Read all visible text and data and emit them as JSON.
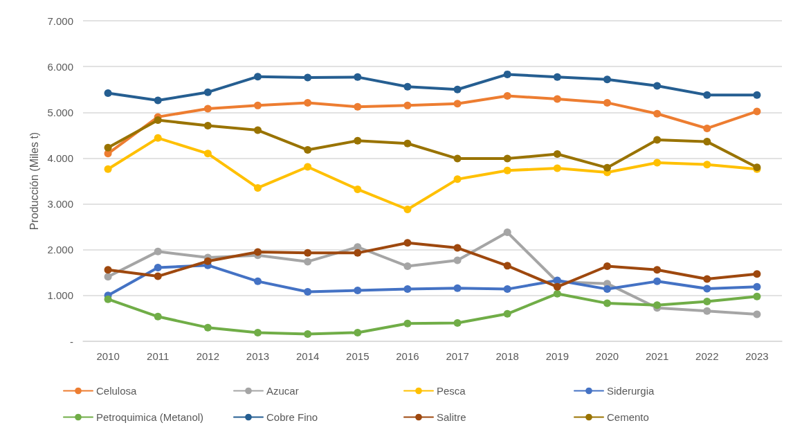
{
  "chart_data": {
    "type": "line",
    "ylabel": "Producción (Miles t)",
    "categories": [
      "2010",
      "2011",
      "2012",
      "2013",
      "2014",
      "2015",
      "2016",
      "2017",
      "2018",
      "2019",
      "2020",
      "2021",
      "2022",
      "2023"
    ],
    "ylim": [
      0,
      7000
    ],
    "yticks": [
      {
        "value": 0,
        "label": "-"
      },
      {
        "value": 1000,
        "label": "1.000"
      },
      {
        "value": 2000,
        "label": "2.000"
      },
      {
        "value": 3000,
        "label": "3.000"
      },
      {
        "value": 4000,
        "label": "4.000"
      },
      {
        "value": 5000,
        "label": "5.000"
      },
      {
        "value": 6000,
        "label": "6.000"
      },
      {
        "value": 7000,
        "label": "7.000"
      }
    ],
    "grid": "y",
    "legend": "bottom",
    "marker": "circle",
    "line_style": "solid",
    "series": [
      {
        "name": "Celulosa",
        "color": "#ed7d31",
        "values": [
          4100,
          4900,
          5080,
          5150,
          5210,
          5120,
          5150,
          5190,
          5360,
          5290,
          5210,
          4970,
          4650,
          5020
        ]
      },
      {
        "name": "Azucar",
        "color": "#a5a5a5",
        "values": [
          1410,
          1960,
          1830,
          1880,
          1740,
          2060,
          1640,
          1770,
          2380,
          1300,
          1260,
          730,
          660,
          590
        ]
      },
      {
        "name": "Pesca",
        "color": "#ffc000",
        "values": [
          3760,
          4440,
          4100,
          3350,
          3810,
          3320,
          2880,
          3540,
          3730,
          3780,
          3690,
          3900,
          3860,
          3760
        ]
      },
      {
        "name": "Siderurgia",
        "color": "#4472c4",
        "values": [
          1000,
          1610,
          1660,
          1310,
          1080,
          1110,
          1140,
          1160,
          1140,
          1330,
          1140,
          1310,
          1150,
          1190
        ]
      },
      {
        "name": "Petroquimica (Metanol)",
        "color": "#70ad47",
        "values": [
          920,
          540,
          300,
          190,
          160,
          190,
          390,
          400,
          600,
          1040,
          830,
          790,
          870,
          980
        ]
      },
      {
        "name": "Cobre Fino",
        "color": "#255e91",
        "values": [
          5420,
          5260,
          5440,
          5780,
          5760,
          5770,
          5560,
          5500,
          5830,
          5770,
          5720,
          5580,
          5380,
          5380
        ]
      },
      {
        "name": "Salitre",
        "color": "#9e480e",
        "values": [
          1560,
          1420,
          1750,
          1950,
          1930,
          1930,
          2150,
          2040,
          1650,
          1190,
          1640,
          1560,
          1360,
          1470
        ]
      },
      {
        "name": "Cemento",
        "color": "#997300",
        "values": [
          4230,
          4830,
          4710,
          4610,
          4180,
          4380,
          4320,
          3990,
          3990,
          4090,
          3790,
          4400,
          4360,
          3800
        ]
      }
    ]
  }
}
